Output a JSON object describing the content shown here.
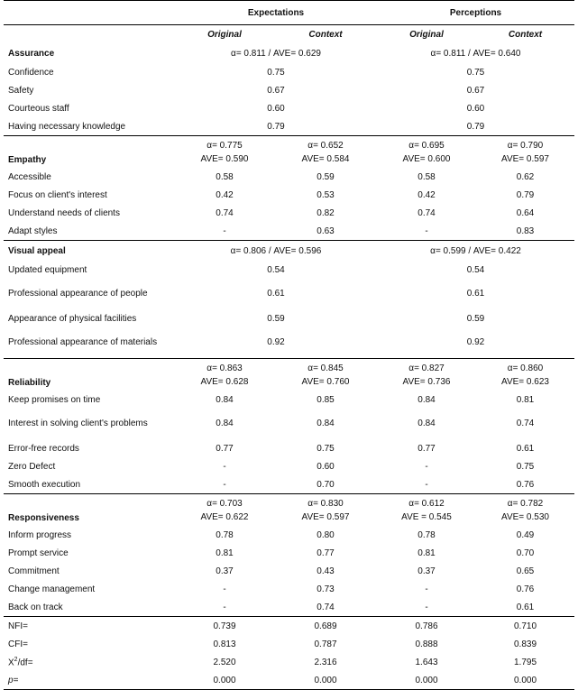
{
  "header": {
    "expectations": "Expectations",
    "perceptions": "Perceptions",
    "sub": [
      "Original",
      "Context",
      "Original",
      "Context"
    ]
  },
  "assurance": {
    "title": "Assurance",
    "exp_stats": "α= 0.811 / AVE= 0.629",
    "perc_stats": "α= 0.811 / AVE= 0.640",
    "items": [
      {
        "label": "Confidence",
        "exp": "0.75",
        "perc": "0.75"
      },
      {
        "label": "Safety",
        "exp": "0.67",
        "perc": "0.67"
      },
      {
        "label": "Courteous staff",
        "exp": "0.60",
        "perc": "0.60"
      },
      {
        "label": "Having necessary knowledge",
        "exp": "0.79",
        "perc": "0.79"
      }
    ]
  },
  "empathy": {
    "title": "Empathy",
    "alpha": [
      "α= 0.775",
      "α= 0.652",
      "α= 0.695",
      "α= 0.790"
    ],
    "ave": [
      "AVE= 0.590",
      "AVE= 0.584",
      "AVE= 0.600",
      "AVE= 0.597"
    ],
    "items": [
      {
        "label": "Accessible",
        "v": [
          "0.58",
          "0.59",
          "0.58",
          "0.62"
        ]
      },
      {
        "label": "Focus on client's interest",
        "v": [
          "0.42",
          "0.53",
          "0.42",
          "0.79"
        ]
      },
      {
        "label": "Understand needs of clients",
        "v": [
          "0.74",
          "0.82",
          "0.74",
          "0.64"
        ]
      },
      {
        "label": "Adapt styles",
        "v": [
          "-",
          "0.63",
          "-",
          "0.83"
        ]
      }
    ]
  },
  "visual": {
    "title": "Visual appeal",
    "exp_stats": "α= 0.806 / AVE= 0.596",
    "perc_stats": "α= 0.599 / AVE= 0.422",
    "items": [
      {
        "label": "Updated equipment",
        "exp": "0.54",
        "perc": "0.54"
      },
      {
        "label": "Professional appearance of people",
        "exp": "0.61",
        "perc": "0.61"
      },
      {
        "label": "Appearance of physical facilities",
        "exp": "0.59",
        "perc": "0.59"
      },
      {
        "label": "Professional appearance of materials",
        "exp": "0.92",
        "perc": "0.92"
      }
    ]
  },
  "reliability": {
    "title": "Reliability",
    "alpha": [
      "α= 0.863",
      "α= 0.845",
      "α= 0.827",
      "α= 0.860"
    ],
    "ave": [
      "AVE= 0.628",
      "AVE= 0.760",
      "AVE= 0.736",
      "AVE= 0.623"
    ],
    "items": [
      {
        "label": "Keep promises on time",
        "v": [
          "0.84",
          "0.85",
          "0.84",
          "0.81"
        ]
      },
      {
        "label": "Interest in solving client's problems",
        "v": [
          "0.84",
          "0.84",
          "0.84",
          "0.74"
        ]
      },
      {
        "label": "Error-free records",
        "v": [
          "0.77",
          "0.75",
          "0.77",
          "0.61"
        ]
      },
      {
        "label": "Zero Defect",
        "v": [
          "-",
          "0.60",
          "-",
          "0.75"
        ]
      },
      {
        "label": "Smooth execution",
        "v": [
          "-",
          "0.70",
          "-",
          "0.76"
        ]
      }
    ]
  },
  "responsiveness": {
    "title": "Responsiveness",
    "alpha": [
      "α= 0.703",
      "α= 0.830",
      "α= 0.612",
      "α= 0.782"
    ],
    "ave": [
      "AVE= 0.622",
      "AVE= 0.597",
      "AVE = 0.545",
      "AVE= 0.530"
    ],
    "items": [
      {
        "label": "Inform progress",
        "v": [
          "0.78",
          "0.80",
          "0.78",
          "0.49"
        ]
      },
      {
        "label": "Prompt service",
        "v": [
          "0.81",
          "0.77",
          "0.81",
          "0.70"
        ]
      },
      {
        "label": "Commitment",
        "v": [
          "0.37",
          "0.43",
          "0.37",
          "0.65"
        ]
      },
      {
        "label": "Change management",
        "v": [
          "-",
          "0.73",
          "-",
          "0.76"
        ]
      },
      {
        "label": "Back on track",
        "v": [
          "-",
          "0.74",
          "-",
          "0.61"
        ]
      }
    ]
  },
  "fit": [
    {
      "label": "NFI=",
      "v": [
        "0.739",
        "0.689",
        "0.786",
        "0.710"
      ]
    },
    {
      "label": "CFI=",
      "v": [
        "0.813",
        "0.787",
        "0.888",
        "0.839"
      ]
    },
    {
      "label_main": "X",
      "label_sup": "2",
      "label_rest": "/df=",
      "v": [
        "2.520",
        "2.316",
        "1.643",
        "1.795"
      ]
    },
    {
      "label": "p=",
      "v": [
        "0.000",
        "0.000",
        "0.000",
        "0.000"
      ]
    }
  ]
}
